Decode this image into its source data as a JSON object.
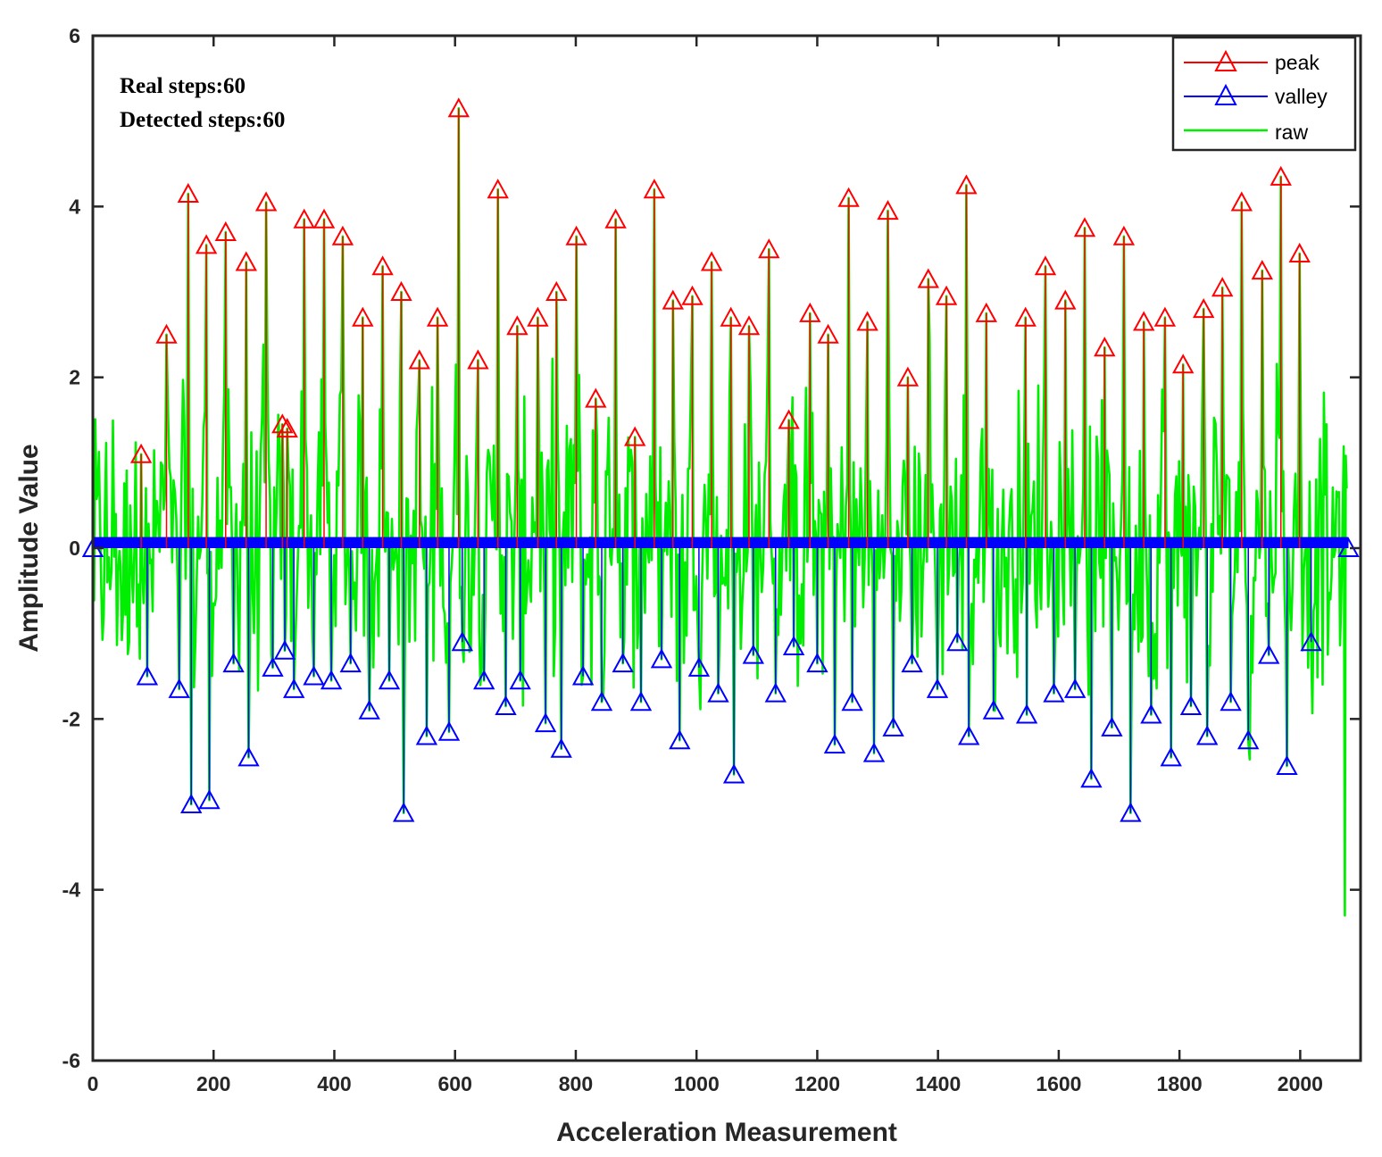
{
  "chart_data": {
    "type": "line",
    "title": "",
    "xlabel": "Acceleration Measurement",
    "ylabel": "Amplitude Value",
    "xlim": [
      0,
      2100
    ],
    "ylim": [
      -6,
      6
    ],
    "xticks": [
      0,
      200,
      400,
      600,
      800,
      1000,
      1200,
      1400,
      1600,
      1800,
      2000
    ],
    "yticks": [
      -6,
      -4,
      -2,
      0,
      2,
      4,
      6
    ],
    "xtick_labels": [
      "0",
      "200",
      "400",
      "600",
      "800",
      "1000",
      "1200",
      "1400",
      "1600",
      "1800",
      "2000"
    ],
    "ytick_labels": [
      "-6",
      "-4",
      "-2",
      "0",
      "2",
      "4",
      "6"
    ],
    "annotations": [
      "Real steps:60",
      "Detected steps:60"
    ],
    "legend_position": "top-right",
    "series": [
      {
        "name": "peak",
        "color": "#ff0000",
        "marker": "triangle",
        "points": [
          [
            80,
            1.1
          ],
          [
            122,
            2.5
          ],
          [
            158,
            4.15
          ],
          [
            188,
            3.55
          ],
          [
            220,
            3.7
          ],
          [
            254,
            3.35
          ],
          [
            287,
            4.05
          ],
          [
            314,
            1.45
          ],
          [
            322,
            1.4
          ],
          [
            350,
            3.85
          ],
          [
            383,
            3.85
          ],
          [
            414,
            3.65
          ],
          [
            447,
            2.7
          ],
          [
            480,
            3.3
          ],
          [
            511,
            3.0
          ],
          [
            541,
            2.2
          ],
          [
            571,
            2.7
          ],
          [
            606,
            5.15
          ],
          [
            638,
            2.2
          ],
          [
            671,
            4.2
          ],
          [
            703,
            2.6
          ],
          [
            737,
            2.7
          ],
          [
            768,
            3.0
          ],
          [
            801,
            3.65
          ],
          [
            833,
            1.75
          ],
          [
            866,
            3.85
          ],
          [
            898,
            1.3
          ],
          [
            930,
            4.2
          ],
          [
            961,
            2.9
          ],
          [
            993,
            2.95
          ],
          [
            1025,
            3.35
          ],
          [
            1057,
            2.7
          ],
          [
            1087,
            2.6
          ],
          [
            1120,
            3.5
          ],
          [
            1153,
            1.5
          ],
          [
            1188,
            2.75
          ],
          [
            1218,
            2.5
          ],
          [
            1252,
            4.1
          ],
          [
            1283,
            2.65
          ],
          [
            1317,
            3.95
          ],
          [
            1350,
            2.0
          ],
          [
            1384,
            3.15
          ],
          [
            1414,
            2.95
          ],
          [
            1447,
            4.25
          ],
          [
            1480,
            2.75
          ],
          [
            1545,
            2.7
          ],
          [
            1578,
            3.3
          ],
          [
            1611,
            2.9
          ],
          [
            1643,
            3.75
          ],
          [
            1676,
            2.35
          ],
          [
            1708,
            3.65
          ],
          [
            1741,
            2.65
          ],
          [
            1776,
            2.7
          ],
          [
            1806,
            2.15
          ],
          [
            1840,
            2.8
          ],
          [
            1871,
            3.05
          ],
          [
            1903,
            4.05
          ],
          [
            1937,
            3.25
          ],
          [
            1968,
            4.35
          ],
          [
            1999,
            3.45
          ]
        ]
      },
      {
        "name": "valley",
        "color": "#0000ff",
        "marker": "triangle",
        "points": [
          [
            90,
            -1.5
          ],
          [
            143,
            -1.65
          ],
          [
            163,
            -3.0
          ],
          [
            193,
            -2.95
          ],
          [
            233,
            -1.35
          ],
          [
            258,
            -2.45
          ],
          [
            298,
            -1.4
          ],
          [
            318,
            -1.2
          ],
          [
            333,
            -1.65
          ],
          [
            366,
            -1.5
          ],
          [
            395,
            -1.55
          ],
          [
            427,
            -1.35
          ],
          [
            458,
            -1.9
          ],
          [
            491,
            -1.55
          ],
          [
            515,
            -3.1
          ],
          [
            553,
            -2.2
          ],
          [
            590,
            -2.15
          ],
          [
            612,
            -1.1
          ],
          [
            648,
            -1.55
          ],
          [
            684,
            -1.85
          ],
          [
            708,
            -1.55
          ],
          [
            750,
            -2.05
          ],
          [
            776,
            -2.35
          ],
          [
            812,
            -1.5
          ],
          [
            843,
            -1.8
          ],
          [
            878,
            -1.35
          ],
          [
            908,
            -1.8
          ],
          [
            942,
            -1.3
          ],
          [
            972,
            -2.25
          ],
          [
            1004,
            -1.4
          ],
          [
            1036,
            -1.7
          ],
          [
            1062,
            -2.65
          ],
          [
            1094,
            -1.25
          ],
          [
            1131,
            -1.7
          ],
          [
            1161,
            -1.15
          ],
          [
            1200,
            -1.35
          ],
          [
            1229,
            -2.3
          ],
          [
            1258,
            -1.8
          ],
          [
            1294,
            -2.4
          ],
          [
            1326,
            -2.1
          ],
          [
            1357,
            -1.35
          ],
          [
            1399,
            -1.65
          ],
          [
            1432,
            -1.1
          ],
          [
            1451,
            -2.2
          ],
          [
            1492,
            -1.9
          ],
          [
            1547,
            -1.95
          ],
          [
            1592,
            -1.7
          ],
          [
            1627,
            -1.65
          ],
          [
            1654,
            -2.7
          ],
          [
            1688,
            -2.1
          ],
          [
            1719,
            -3.1
          ],
          [
            1753,
            -1.95
          ],
          [
            1786,
            -2.45
          ],
          [
            1819,
            -1.85
          ],
          [
            1846,
            -2.2
          ],
          [
            1885,
            -1.8
          ],
          [
            1914,
            -2.25
          ],
          [
            1948,
            -1.25
          ],
          [
            1978,
            -2.55
          ],
          [
            2018,
            -1.1
          ]
        ]
      },
      {
        "name": "raw",
        "color": "#00ee00",
        "marker": "none",
        "note": "dense noisy accelerometer trace (~2080 samples) oscillating between the detected peaks and valleys; start value ~-0.1, ends with a dip near -4.3 at x~2074"
      }
    ]
  },
  "legend": {
    "peak": "peak",
    "valley": "valley",
    "raw": "raw"
  }
}
